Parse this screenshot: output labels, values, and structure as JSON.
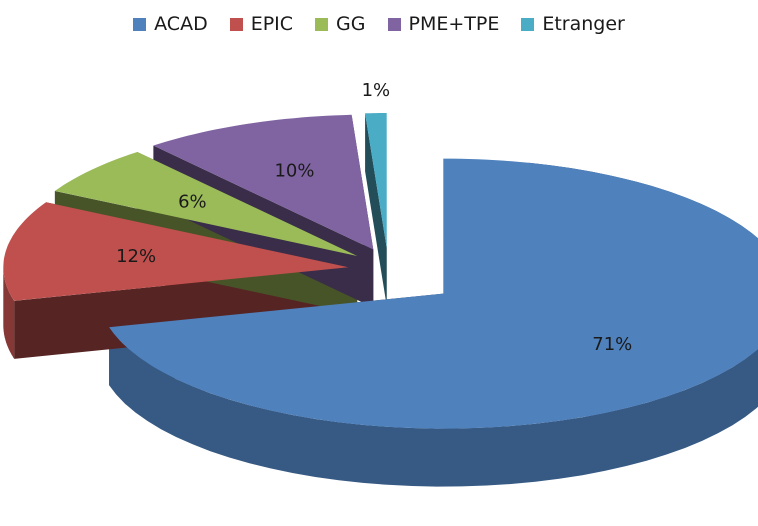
{
  "chart_data": {
    "type": "pie",
    "style": "3d-exploded",
    "legend_position": "top",
    "series": [
      {
        "name": "ACAD",
        "value": 71,
        "label": "71%",
        "color": "#4F81BD"
      },
      {
        "name": "EPIC",
        "value": 12,
        "label": "12%",
        "color": "#C0504D"
      },
      {
        "name": "GG",
        "value": 6,
        "label": "6%",
        "color": "#9BBB59"
      },
      {
        "name": "PME+TPE",
        "value": 10,
        "label": "10%",
        "color": "#8064A2"
      },
      {
        "name": "Etranger",
        "value": 1,
        "label": "1%",
        "color": "#4BACC6"
      }
    ]
  }
}
